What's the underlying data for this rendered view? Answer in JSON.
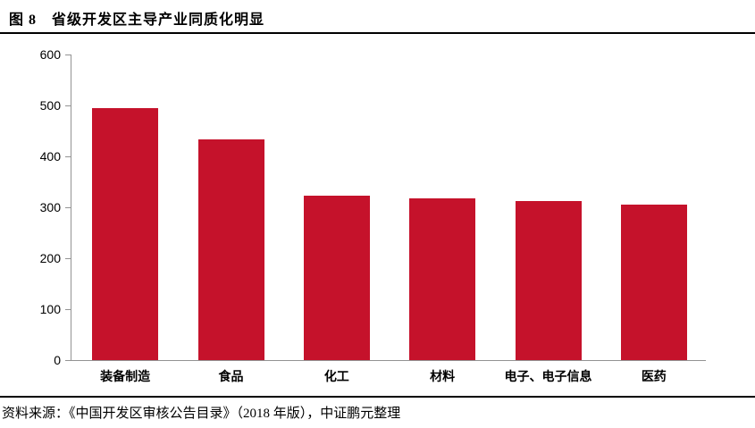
{
  "title": "图 8　省级开发区主导产业同质化明显",
  "footer": {
    "source_text": "资料来源：《中国开发区审核公告目录》（2018 年版），中证鹏元整理"
  },
  "colors": {
    "bar": "#C5122B",
    "axis": "#939393",
    "rule": "#000000",
    "text": "#000000"
  },
  "chart_data": {
    "type": "bar",
    "title": "省级开发区主导产业同质化明显",
    "categories": [
      "装备制造",
      "食品",
      "化工",
      "材料",
      "电子、电子信息",
      "医药"
    ],
    "values": [
      494,
      433,
      323,
      317,
      313,
      305
    ],
    "xlabel": "",
    "ylabel": "",
    "ylim": [
      0,
      600
    ],
    "yticks": [
      0,
      100,
      200,
      300,
      400,
      500,
      600
    ],
    "grid": false,
    "legend": "none",
    "bar_color": "#C5122B"
  }
}
